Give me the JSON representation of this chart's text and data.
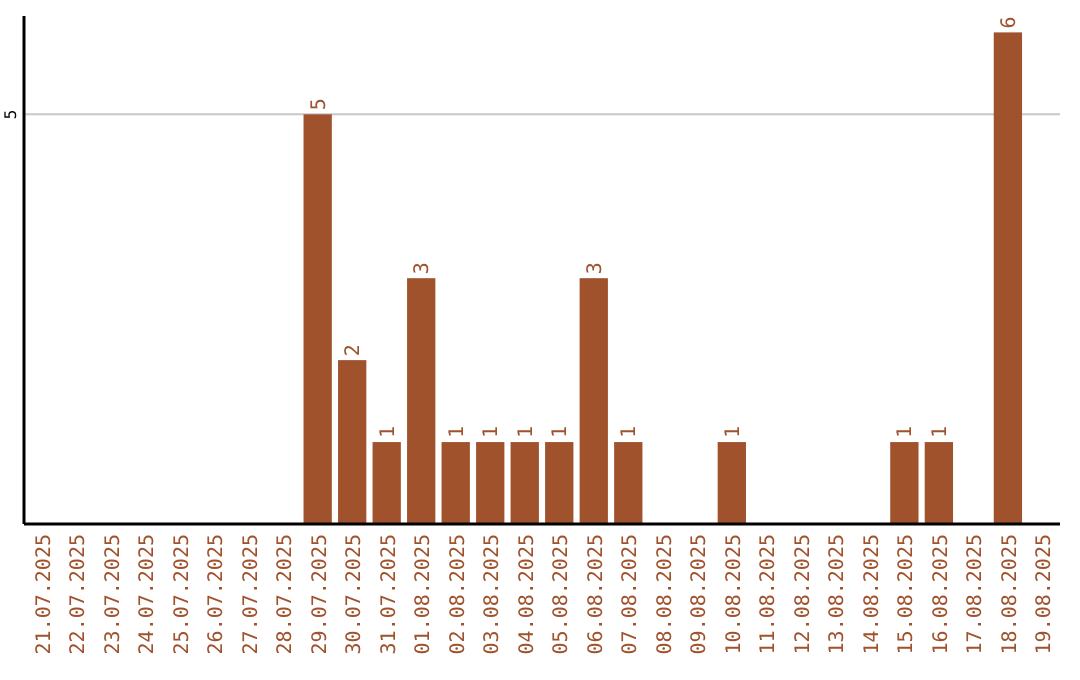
{
  "chart_data": {
    "type": "bar",
    "categories": [
      "21.07.2025",
      "22.07.2025",
      "23.07.2025",
      "24.07.2025",
      "25.07.2025",
      "26.07.2025",
      "27.07.2025",
      "28.07.2025",
      "29.07.2025",
      "30.07.2025",
      "31.07.2025",
      "01.08.2025",
      "02.08.2025",
      "03.08.2025",
      "04.08.2025",
      "05.08.2025",
      "06.08.2025",
      "07.08.2025",
      "08.08.2025",
      "09.08.2025",
      "10.08.2025",
      "11.08.2025",
      "12.08.2025",
      "13.08.2025",
      "14.08.2025",
      "15.08.2025",
      "16.08.2025",
      "17.08.2025",
      "18.08.2025",
      "19.08.2025"
    ],
    "values": [
      0,
      0,
      0,
      0,
      0,
      0,
      0,
      0,
      5,
      2,
      1,
      3,
      1,
      1,
      1,
      1,
      3,
      1,
      0,
      0,
      1,
      0,
      0,
      0,
      0,
      1,
      1,
      0,
      6,
      0
    ],
    "value_labels": [
      null,
      null,
      null,
      null,
      null,
      null,
      null,
      null,
      "5",
      "2",
      "1",
      "3",
      "1",
      "1",
      "1",
      "1",
      "3",
      "1",
      null,
      null,
      "1",
      null,
      null,
      null,
      null,
      "1",
      "1",
      null,
      "6",
      null
    ],
    "color": "#a0522d",
    "ylim": [
      0,
      6.2
    ],
    "yticks": [
      5
    ],
    "grid": "y"
  }
}
